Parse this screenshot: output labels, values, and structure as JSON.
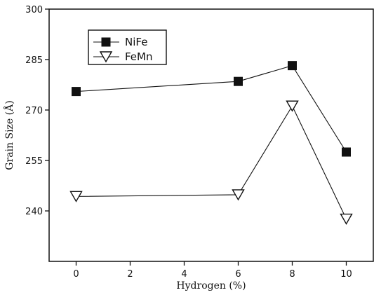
{
  "chart_data": {
    "type": "line",
    "xlabel": "Hydrogen (%)",
    "ylabel": "Grain Size (Å)",
    "xlim": [
      -1,
      11
    ],
    "ylim": [
      225,
      300
    ],
    "x_ticks": [
      0,
      2,
      4,
      6,
      8,
      10
    ],
    "y_ticks": [
      240,
      255,
      270,
      285,
      300
    ],
    "grid": false,
    "legend_position": "top-left",
    "series": [
      {
        "name": "NiFe",
        "marker": "filled-square",
        "color": "#111111",
        "x": [
          0,
          6,
          8,
          10
        ],
        "y": [
          275.5,
          278.5,
          283.2,
          257.5
        ]
      },
      {
        "name": "FeMn",
        "marker": "open-triangle-down",
        "color": "#111111",
        "x": [
          0,
          6,
          8,
          10
        ],
        "y": [
          244.3,
          244.8,
          271.2,
          237.6
        ]
      }
    ]
  }
}
